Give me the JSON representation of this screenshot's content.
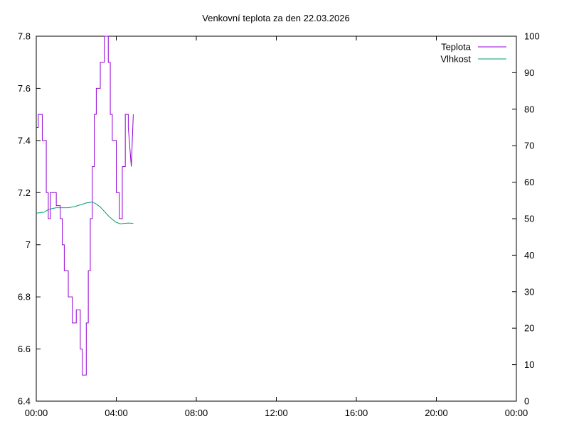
{
  "chart_data": {
    "type": "line",
    "title": "Venkovní teplota za den 22.03.2026",
    "x_ticks": [
      "00:00",
      "04:00",
      "08:00",
      "12:00",
      "16:00",
      "20:00",
      "00:00"
    ],
    "xlim_hours": [
      0,
      24
    ],
    "y1_ticks": [
      "6.4",
      "6.6",
      "6.8",
      "7",
      "7.2",
      "7.4",
      "7.6",
      "7.8"
    ],
    "y1lim": [
      6.4,
      7.8
    ],
    "y2_ticks": [
      "0",
      "10",
      "20",
      "30",
      "40",
      "50",
      "60",
      "70",
      "80",
      "90",
      "100"
    ],
    "y2lim": [
      0,
      100
    ],
    "grid": false,
    "legend_position": "top-right",
    "series": [
      {
        "name": "Teplota",
        "axis": "y1",
        "color": "#9400d3",
        "x_hours": [
          0.0,
          0.1,
          0.1,
          0.3,
          0.3,
          0.5,
          0.5,
          0.6,
          0.6,
          0.7,
          0.7,
          0.8,
          0.8,
          1.0,
          1.0,
          1.2,
          1.2,
          1.3,
          1.3,
          1.4,
          1.4,
          1.6,
          1.6,
          1.8,
          1.8,
          2.0,
          2.0,
          2.2,
          2.2,
          2.3,
          2.3,
          2.5,
          2.5,
          2.6,
          2.6,
          2.7,
          2.7,
          2.8,
          2.8,
          2.9,
          2.9,
          3.0,
          3.0,
          3.2,
          3.2,
          3.4,
          3.4,
          3.6,
          3.6,
          3.7,
          3.7,
          3.8,
          3.8,
          4.0,
          4.0,
          4.15,
          4.15,
          4.3,
          4.3,
          4.45,
          4.45,
          4.6,
          4.6,
          4.75,
          4.85
        ],
        "values": [
          7.45,
          7.45,
          7.5,
          7.5,
          7.4,
          7.4,
          7.2,
          7.2,
          7.1,
          7.1,
          7.2,
          7.2,
          7.2,
          7.2,
          7.15,
          7.15,
          7.1,
          7.1,
          7.0,
          7.0,
          6.9,
          6.9,
          6.8,
          6.8,
          6.7,
          6.7,
          6.75,
          6.75,
          6.6,
          6.6,
          6.5,
          6.5,
          6.7,
          6.7,
          6.9,
          6.9,
          7.1,
          7.1,
          7.3,
          7.3,
          7.5,
          7.5,
          7.6,
          7.6,
          7.7,
          7.7,
          7.8,
          7.8,
          7.7,
          7.7,
          7.5,
          7.5,
          7.4,
          7.4,
          7.2,
          7.2,
          7.1,
          7.1,
          7.3,
          7.3,
          7.5,
          7.5,
          7.45,
          7.3,
          7.5
        ]
      },
      {
        "name": "Vlhkost",
        "axis": "y2",
        "color": "#009e73",
        "x_hours": [
          0.0,
          0.4,
          0.6,
          0.8,
          1.0,
          1.3,
          1.6,
          1.9,
          2.2,
          2.5,
          2.8,
          3.0,
          3.2,
          3.4,
          3.6,
          3.8,
          4.0,
          4.2,
          4.4,
          4.6,
          4.85
        ],
        "values": [
          51.5,
          51.8,
          52.5,
          52.8,
          53.0,
          53.0,
          53.0,
          53.3,
          53.8,
          54.3,
          54.6,
          54.0,
          53.2,
          52.0,
          50.8,
          49.8,
          49.0,
          48.6,
          48.7,
          48.8,
          48.7
        ]
      }
    ]
  }
}
